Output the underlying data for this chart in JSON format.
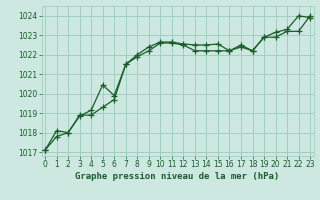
{
  "title": "Graphe pression niveau de la mer (hPa)",
  "bg_color": "#cce8e0",
  "grid_color": "#99ccbb",
  "line_color": "#1a5c2a",
  "ylim": [
    1016.8,
    1024.5
  ],
  "yticks": [
    1017,
    1018,
    1019,
    1020,
    1021,
    1022,
    1023,
    1024
  ],
  "xlim": [
    -0.3,
    23.3
  ],
  "xticks": [
    0,
    1,
    2,
    3,
    4,
    5,
    6,
    7,
    8,
    9,
    10,
    11,
    12,
    13,
    14,
    15,
    16,
    17,
    18,
    19,
    20,
    21,
    22,
    23
  ],
  "series1": [
    1017.1,
    1017.8,
    1018.0,
    1018.9,
    1018.9,
    1019.3,
    1019.7,
    1021.5,
    1021.9,
    1022.2,
    1022.6,
    1022.6,
    1022.5,
    1022.2,
    1022.2,
    1022.2,
    1022.2,
    1022.4,
    1022.2,
    1022.9,
    1022.9,
    1023.2,
    1023.2,
    1024.0
  ],
  "series2": [
    1017.1,
    1018.1,
    1018.0,
    1018.85,
    1019.15,
    1020.45,
    1019.9,
    1021.5,
    1022.0,
    1022.4,
    1022.65,
    1022.65,
    1022.55,
    1022.5,
    1022.5,
    1022.55,
    1022.2,
    1022.5,
    1022.2,
    1022.9,
    1023.15,
    1023.3,
    1024.0,
    1023.9
  ],
  "figwidth": 3.2,
  "figheight": 2.0,
  "dpi": 100,
  "tick_fontsize": 5.5,
  "xlabel_fontsize": 6.5,
  "linewidth": 0.9,
  "markersize": 4
}
